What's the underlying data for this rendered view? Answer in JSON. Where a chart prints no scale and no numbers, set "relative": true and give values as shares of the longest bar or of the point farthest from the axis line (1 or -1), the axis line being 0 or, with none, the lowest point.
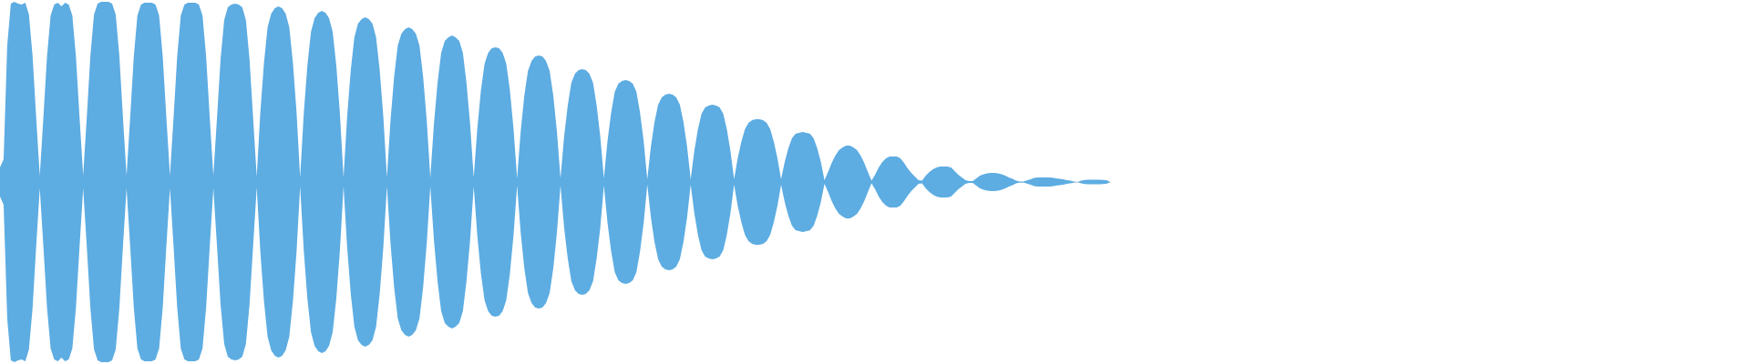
{
  "chart_data": {
    "type": "area",
    "relative": true,
    "tick_labels": false,
    "categories": [
      null,
      null,
      null,
      null,
      null,
      null,
      null,
      null,
      null,
      null,
      null,
      null,
      null,
      null,
      null,
      null,
      null,
      null,
      null,
      null,
      null,
      null,
      null,
      null,
      null,
      null,
      null,
      null,
      null,
      null,
      null,
      null,
      null,
      null,
      null,
      null,
      null,
      null,
      null,
      null,
      null,
      null,
      null,
      null,
      null,
      null,
      null,
      null,
      null,
      null,
      null,
      null,
      null,
      null,
      null,
      null,
      null,
      null,
      null,
      null,
      null,
      null,
      null,
      null,
      null,
      null,
      null,
      null,
      null,
      null,
      null,
      null,
      null,
      null,
      null,
      null,
      null,
      null,
      null,
      null,
      null,
      null,
      null,
      null,
      null,
      null,
      null,
      null,
      null,
      null,
      null,
      null,
      null,
      null,
      null,
      null,
      null,
      null,
      null,
      null,
      null,
      null,
      null,
      null,
      null,
      null,
      null,
      null,
      null,
      null,
      null,
      null,
      null,
      null,
      null,
      null,
      null,
      null,
      null,
      null,
      null,
      null,
      null,
      null,
      null,
      null,
      null,
      null,
      null,
      null,
      null,
      null,
      null,
      null,
      null,
      null,
      null,
      null,
      null,
      null,
      null,
      null,
      null,
      null,
      null,
      null,
      null,
      null,
      null,
      null,
      null,
      null,
      null,
      null,
      null,
      null,
      null,
      null,
      null,
      null,
      null,
      null,
      null,
      null,
      null,
      null,
      null,
      null,
      null,
      null,
      null,
      null,
      null,
      null,
      null,
      null,
      null,
      null,
      null,
      null,
      null,
      null,
      null,
      null,
      null,
      null,
      null,
      null,
      null,
      null,
      null,
      null,
      null,
      null,
      null,
      null,
      null,
      null,
      null,
      null,
      null,
      null,
      null,
      null,
      null,
      null,
      null,
      null,
      null,
      null,
      null,
      null,
      null,
      null,
      null,
      null,
      null,
      null,
      null,
      null,
      null,
      null,
      null,
      null,
      null,
      null,
      null,
      null,
      null,
      null,
      null,
      null,
      null,
      null,
      null,
      null,
      null,
      null,
      null,
      null,
      null,
      null,
      null,
      null,
      null,
      null,
      null,
      null,
      null,
      null,
      null,
      null,
      null,
      null,
      null,
      null,
      null,
      null,
      null,
      null,
      null,
      null,
      null,
      null,
      null,
      null,
      null,
      null,
      null,
      null,
      null,
      null,
      null,
      null,
      null,
      null,
      null,
      null,
      null,
      null,
      null,
      null,
      null,
      null,
      null,
      null,
      null,
      null,
      null,
      null,
      null,
      null,
      null,
      null,
      null,
      null,
      null,
      null,
      null,
      null,
      null,
      null,
      null,
      null,
      null,
      null,
      null,
      null
    ],
    "series": [
      {
        "color": "#5dace2",
        "values": [
          0.081,
          0.126,
          0.758,
          0.99,
          1,
          0.99,
          0.985,
          0.995,
          0.929,
          0.702,
          0.359,
          0.035,
          0.359,
          0.697,
          0.924,
          0.985,
          0.995,
          0.975,
          0.995,
          0.985,
          0.924,
          0.697,
          0.359,
          0.035,
          0.359,
          0.702,
          0.929,
          0.99,
          1,
          1,
          1,
          0.99,
          0.929,
          0.702,
          0.359,
          0.035,
          0.359,
          0.697,
          0.924,
          0.985,
          0.995,
          0.995,
          0.995,
          0.985,
          0.924,
          0.697,
          0.359,
          0.035,
          0.359,
          0.697,
          0.924,
          0.985,
          0.995,
          0.995,
          0.995,
          0.985,
          0.924,
          0.697,
          0.359,
          0.035,
          0.354,
          0.682,
          0.899,
          0.97,
          0.985,
          0.99,
          0.985,
          0.97,
          0.899,
          0.682,
          0.354,
          0.03,
          0.389,
          0.662,
          0.859,
          0.934,
          0.965,
          0.975,
          0.965,
          0.934,
          0.859,
          0.662,
          0.389,
          0.025,
          0.379,
          0.646,
          0.833,
          0.909,
          0.939,
          0.949,
          0.939,
          0.909,
          0.833,
          0.646,
          0.379,
          0.025,
          0.364,
          0.621,
          0.803,
          0.879,
          0.904,
          0.914,
          0.904,
          0.879,
          0.803,
          0.621,
          0.364,
          0.025,
          0.343,
          0.586,
          0.758,
          0.823,
          0.848,
          0.859,
          0.848,
          0.823,
          0.758,
          0.586,
          0.343,
          0.025,
          0.323,
          0.551,
          0.717,
          0.783,
          0.803,
          0.813,
          0.803,
          0.783,
          0.717,
          0.551,
          0.323,
          0.025,
          0.298,
          0.51,
          0.657,
          0.717,
          0.742,
          0.747,
          0.742,
          0.717,
          0.657,
          0.51,
          0.298,
          0.02,
          0.283,
          0.48,
          0.616,
          0.672,
          0.697,
          0.702,
          0.697,
          0.672,
          0.616,
          0.48,
          0.283,
          0.02,
          0.253,
          0.424,
          0.551,
          0.601,
          0.621,
          0.626,
          0.621,
          0.601,
          0.551,
          0.424,
          0.253,
          0.02,
          0.227,
          0.384,
          0.5,
          0.545,
          0.561,
          0.566,
          0.561,
          0.545,
          0.5,
          0.384,
          0.227,
          0.015,
          0.197,
          0.333,
          0.429,
          0.47,
          0.485,
          0.49,
          0.485,
          0.47,
          0.429,
          0.333,
          0.197,
          0.015,
          0.172,
          0.293,
          0.379,
          0.414,
          0.424,
          0.429,
          0.424,
          0.414,
          0.379,
          0.293,
          0.172,
          0.015,
          0.131,
          0.222,
          0.293,
          0.328,
          0.343,
          0.348,
          0.348,
          0.343,
          0.328,
          0.293,
          0.222,
          0.131,
          0.015,
          0.111,
          0.187,
          0.242,
          0.268,
          0.273,
          0.278,
          0.273,
          0.268,
          0.242,
          0.187,
          0.111,
          0.01,
          0.056,
          0.106,
          0.146,
          0.177,
          0.192,
          0.202,
          0.202,
          0.192,
          0.177,
          0.146,
          0.106,
          0.056,
          0.008,
          0.04,
          0.081,
          0.111,
          0.131,
          0.141,
          0.141,
          0.141,
          0.131,
          0.106,
          0.076,
          0.051,
          0.03,
          0.01,
          0.008,
          0.035,
          0.056,
          0.071,
          0.081,
          0.086,
          0.086,
          0.086,
          0.081,
          0.061,
          0.04,
          0.025,
          0.01,
          0.005,
          0.005,
          0.02,
          0.035,
          0.043,
          0.048,
          0.051,
          0.051,
          0.048,
          0.043,
          0.035,
          0.025,
          0.018,
          0.008,
          0.003,
          0.003,
          0.009,
          0.015,
          0.023,
          0.025,
          0.025,
          0.025,
          0.025,
          0.024,
          0.02,
          0.018,
          0.015,
          0.01,
          0.007,
          0.003,
          0,
          0.007,
          0.011,
          0.012,
          0.012,
          0.012,
          0.012,
          0.011,
          0.01,
          0
        ]
      },
      {
        "color": "#5dade2",
        "values": [
          -0.081,
          -0.126,
          -0.758,
          -0.99,
          -1,
          -0.99,
          -0.985,
          -0.995,
          -0.929,
          -0.702,
          -0.359,
          -0.035,
          -0.359,
          -0.697,
          -0.924,
          -0.985,
          -0.995,
          -0.975,
          -0.995,
          -0.985,
          -0.924,
          -0.697,
          -0.359,
          -0.035,
          -0.359,
          -0.702,
          -0.929,
          -0.99,
          -1,
          -1,
          -1,
          -0.99,
          -0.929,
          -0.702,
          -0.359,
          -0.035,
          -0.359,
          -0.697,
          -0.924,
          -0.985,
          -0.995,
          -0.995,
          -0.995,
          -0.985,
          -0.924,
          -0.697,
          -0.359,
          -0.035,
          -0.359,
          -0.697,
          -0.924,
          -0.985,
          -0.995,
          -0.995,
          -0.995,
          -0.985,
          -0.924,
          -0.697,
          -0.359,
          -0.035,
          -0.354,
          -0.682,
          -0.899,
          -0.97,
          -0.985,
          -0.99,
          -0.985,
          -0.97,
          -0.899,
          -0.682,
          -0.354,
          -0.03,
          -0.389,
          -0.662,
          -0.859,
          -0.934,
          -0.965,
          -0.975,
          -0.965,
          -0.934,
          -0.859,
          -0.662,
          -0.389,
          -0.025,
          -0.379,
          -0.646,
          -0.833,
          -0.909,
          -0.939,
          -0.949,
          -0.939,
          -0.909,
          -0.833,
          -0.646,
          -0.379,
          -0.025,
          -0.364,
          -0.621,
          -0.803,
          -0.879,
          -0.904,
          -0.914,
          -0.904,
          -0.879,
          -0.803,
          -0.621,
          -0.364,
          -0.025,
          -0.343,
          -0.586,
          -0.758,
          -0.823,
          -0.848,
          -0.859,
          -0.848,
          -0.823,
          -0.758,
          -0.586,
          -0.343,
          -0.025,
          -0.323,
          -0.551,
          -0.717,
          -0.783,
          -0.803,
          -0.813,
          -0.803,
          -0.783,
          -0.717,
          -0.551,
          -0.323,
          -0.025,
          -0.298,
          -0.51,
          -0.657,
          -0.717,
          -0.742,
          -0.747,
          -0.742,
          -0.717,
          -0.657,
          -0.51,
          -0.298,
          -0.02,
          -0.283,
          -0.48,
          -0.616,
          -0.672,
          -0.697,
          -0.702,
          -0.697,
          -0.672,
          -0.616,
          -0.48,
          -0.283,
          -0.02,
          -0.253,
          -0.424,
          -0.551,
          -0.601,
          -0.621,
          -0.626,
          -0.621,
          -0.601,
          -0.551,
          -0.424,
          -0.253,
          -0.02,
          -0.227,
          -0.384,
          -0.5,
          -0.545,
          -0.561,
          -0.566,
          -0.561,
          -0.545,
          -0.5,
          -0.384,
          -0.227,
          -0.015,
          -0.197,
          -0.333,
          -0.429,
          -0.47,
          -0.485,
          -0.49,
          -0.485,
          -0.47,
          -0.429,
          -0.333,
          -0.197,
          -0.015,
          -0.172,
          -0.293,
          -0.379,
          -0.414,
          -0.424,
          -0.429,
          -0.424,
          -0.414,
          -0.379,
          -0.293,
          -0.172,
          -0.015,
          -0.131,
          -0.222,
          -0.293,
          -0.328,
          -0.343,
          -0.348,
          -0.348,
          -0.343,
          -0.328,
          -0.293,
          -0.222,
          -0.131,
          -0.015,
          -0.111,
          -0.187,
          -0.242,
          -0.268,
          -0.273,
          -0.278,
          -0.273,
          -0.268,
          -0.242,
          -0.187,
          -0.111,
          -0.01,
          -0.056,
          -0.106,
          -0.146,
          -0.177,
          -0.192,
          -0.202,
          -0.202,
          -0.192,
          -0.177,
          -0.146,
          -0.106,
          -0.056,
          -0.008,
          -0.04,
          -0.081,
          -0.111,
          -0.131,
          -0.141,
          -0.141,
          -0.141,
          -0.131,
          -0.106,
          -0.076,
          -0.051,
          -0.03,
          -0.01,
          -0.008,
          -0.035,
          -0.056,
          -0.071,
          -0.081,
          -0.086,
          -0.086,
          -0.086,
          -0.081,
          -0.061,
          -0.04,
          -0.025,
          -0.01,
          -0.005,
          -0.005,
          -0.02,
          -0.035,
          -0.043,
          -0.048,
          -0.051,
          -0.051,
          -0.048,
          -0.043,
          -0.035,
          -0.025,
          -0.018,
          -0.008,
          -0.003,
          -0.003,
          -0.009,
          -0.015,
          -0.023,
          -0.025,
          -0.025,
          -0.025,
          -0.025,
          -0.024,
          -0.02,
          -0.018,
          -0.015,
          -0.01,
          -0.007,
          -0.003,
          0,
          -0.007,
          -0.011,
          -0.012,
          -0.012,
          -0.012,
          -0.012,
          -0.011,
          -0.01,
          0
        ]
      }
    ]
  }
}
